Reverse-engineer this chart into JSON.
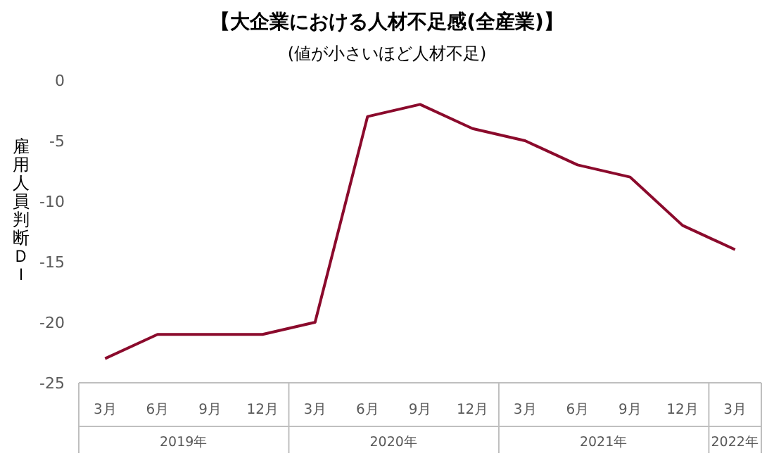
{
  "chart_data": {
    "type": "line",
    "title": "【大企業における人材不足感(全産業)】",
    "subtitle": "(値が小さいほど人材不足)",
    "ylabel": "雇用人員判断ＤＩ",
    "categories": [
      "3月",
      "6月",
      "9月",
      "12月",
      "3月",
      "6月",
      "9月",
      "12月",
      "3月",
      "6月",
      "9月",
      "12月",
      "3月"
    ],
    "series": [
      {
        "color": "#8b0a2c",
        "values": [
          -23,
          -21,
          -21,
          -21,
          -20,
          -3,
          -2,
          -4,
          -5,
          -7,
          -8,
          -12,
          -14
        ]
      }
    ],
    "ylim": [
      -25,
      0
    ],
    "yticks": [
      0,
      -5,
      -10,
      -15,
      -20,
      -25
    ],
    "grid": false,
    "marker": "none",
    "line_style": "solid",
    "annotations": [
      "2019年",
      "2020年",
      "2021年",
      "2022年"
    ]
  }
}
